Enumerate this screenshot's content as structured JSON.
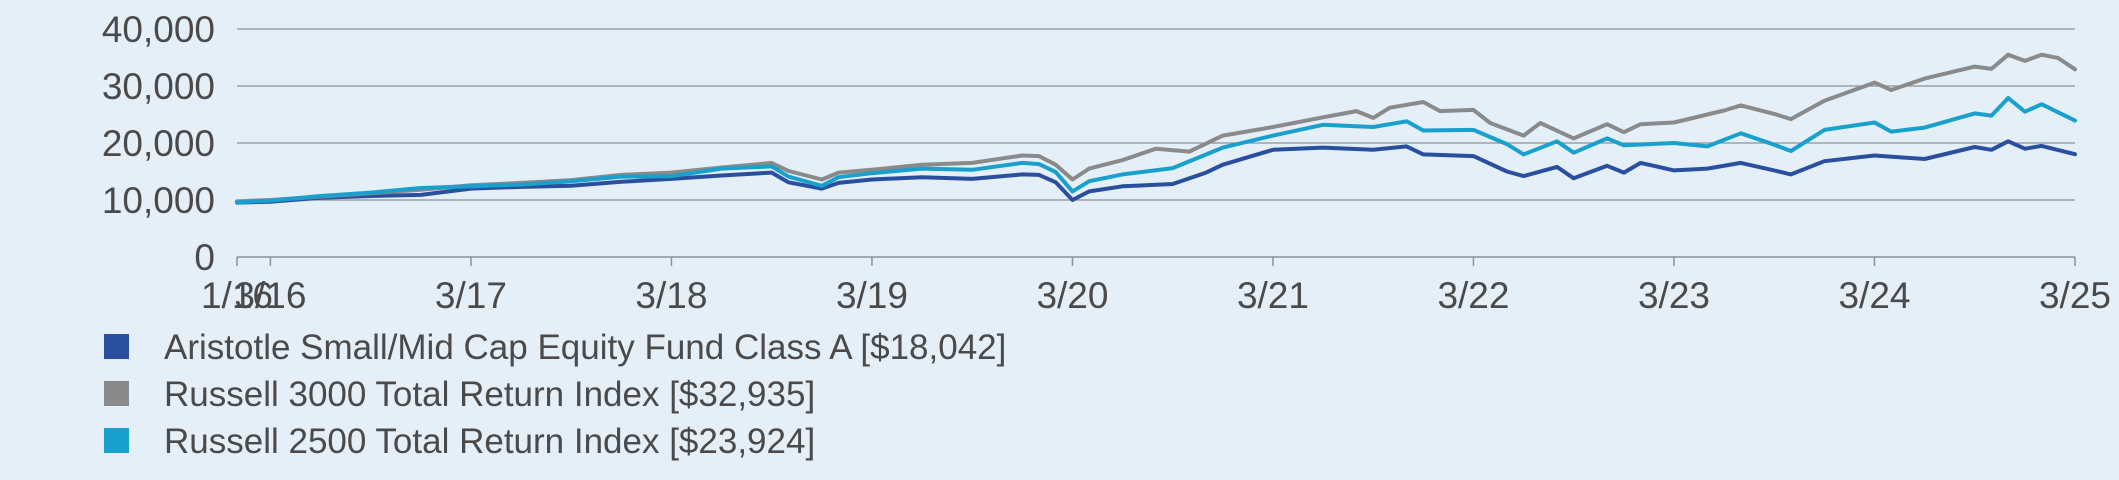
{
  "colors": {
    "background": "#e4eff8",
    "grid": "#8c9296",
    "axis_text": "#4a4a4a"
  },
  "chart_data": {
    "type": "line",
    "title": "",
    "xlabel": "",
    "ylabel": "",
    "ylim": [
      0,
      40000
    ],
    "yticks": [
      0,
      10000,
      20000,
      30000,
      40000
    ],
    "ytick_labels": [
      "0",
      "10,000",
      "20,000",
      "30,000",
      "40,000"
    ],
    "xlim": [
      "2016-01",
      "2025-03"
    ],
    "xticks": [
      "2016-01",
      "2016-03",
      "2017-03",
      "2018-03",
      "2019-03",
      "2020-03",
      "2021-03",
      "2022-03",
      "2023-03",
      "2024-03",
      "2025-03"
    ],
    "xtick_labels": [
      "1/16",
      "3/16",
      "3/17",
      "3/18",
      "3/19",
      "3/20",
      "3/21",
      "3/22",
      "3/23",
      "3/24",
      "3/25"
    ],
    "grid": true,
    "legend_position": "bottom",
    "series": [
      {
        "name": "Aristotle Small/Mid Cap Equity Fund Class A [$18,042]",
        "color": "#2b4f9f",
        "points": [
          [
            "2016-01",
            9550
          ],
          [
            "2016-03",
            9700
          ],
          [
            "2016-06",
            10400
          ],
          [
            "2016-09",
            10700
          ],
          [
            "2016-12",
            10900
          ],
          [
            "2017-03",
            12000
          ],
          [
            "2017-06",
            12300
          ],
          [
            "2017-09",
            12500
          ],
          [
            "2017-12",
            13200
          ],
          [
            "2018-03",
            13700
          ],
          [
            "2018-06",
            14300
          ],
          [
            "2018-09",
            14800
          ],
          [
            "2018-10",
            13100
          ],
          [
            "2018-12",
            12000
          ],
          [
            "2019-01",
            13000
          ],
          [
            "2019-03",
            13600
          ],
          [
            "2019-06",
            14000
          ],
          [
            "2019-09",
            13700
          ],
          [
            "2019-12",
            14500
          ],
          [
            "2020-01",
            14400
          ],
          [
            "2020-02",
            13100
          ],
          [
            "2020-03",
            10000
          ],
          [
            "2020-04",
            11500
          ],
          [
            "2020-06",
            12400
          ],
          [
            "2020-09",
            12800
          ],
          [
            "2020-11",
            14800
          ],
          [
            "2020-12",
            16200
          ],
          [
            "2021-03",
            18800
          ],
          [
            "2021-06",
            19200
          ],
          [
            "2021-09",
            18800
          ],
          [
            "2021-11",
            19400
          ],
          [
            "2021-12",
            18000
          ],
          [
            "2022-03",
            17700
          ],
          [
            "2022-05",
            15000
          ],
          [
            "2022-06",
            14200
          ],
          [
            "2022-08",
            15800
          ],
          [
            "2022-09",
            13800
          ],
          [
            "2022-11",
            16000
          ],
          [
            "2022-12",
            14800
          ],
          [
            "2023-01",
            16500
          ],
          [
            "2023-03",
            15200
          ],
          [
            "2023-05",
            15500
          ],
          [
            "2023-07",
            16500
          ],
          [
            "2023-09",
            15200
          ],
          [
            "2023-10",
            14500
          ],
          [
            "2023-12",
            16800
          ],
          [
            "2024-03",
            17800
          ],
          [
            "2024-06",
            17200
          ],
          [
            "2024-09",
            19300
          ],
          [
            "2024-10",
            18800
          ],
          [
            "2024-11",
            20300
          ],
          [
            "2024-12",
            19000
          ],
          [
            "2025-01",
            19500
          ],
          [
            "2025-03",
            18042
          ]
        ]
      },
      {
        "name": "Russell 3000 Total Return Index [$32,935]",
        "color": "#8a8a8a",
        "points": [
          [
            "2016-01",
            9750
          ],
          [
            "2016-03",
            10000
          ],
          [
            "2016-06",
            10600
          ],
          [
            "2016-09",
            11200
          ],
          [
            "2016-12",
            11800
          ],
          [
            "2017-03",
            12600
          ],
          [
            "2017-06",
            13000
          ],
          [
            "2017-09",
            13500
          ],
          [
            "2017-12",
            14400
          ],
          [
            "2018-03",
            14800
          ],
          [
            "2018-06",
            15700
          ],
          [
            "2018-09",
            16500
          ],
          [
            "2018-10",
            15100
          ],
          [
            "2018-12",
            13600
          ],
          [
            "2019-01",
            14800
          ],
          [
            "2019-03",
            15300
          ],
          [
            "2019-06",
            16200
          ],
          [
            "2019-09",
            16500
          ],
          [
            "2019-12",
            17800
          ],
          [
            "2020-01",
            17700
          ],
          [
            "2020-02",
            16200
          ],
          [
            "2020-03",
            13600
          ],
          [
            "2020-04",
            15500
          ],
          [
            "2020-06",
            17000
          ],
          [
            "2020-08",
            19000
          ],
          [
            "2020-10",
            18500
          ],
          [
            "2020-12",
            21300
          ],
          [
            "2021-03",
            22800
          ],
          [
            "2021-06",
            24500
          ],
          [
            "2021-08",
            25600
          ],
          [
            "2021-09",
            24400
          ],
          [
            "2021-10",
            26200
          ],
          [
            "2021-12",
            27200
          ],
          [
            "2022-01",
            25600
          ],
          [
            "2022-03",
            25800
          ],
          [
            "2022-04",
            23500
          ],
          [
            "2022-06",
            21300
          ],
          [
            "2022-07",
            23500
          ],
          [
            "2022-09",
            20800
          ],
          [
            "2022-11",
            23300
          ],
          [
            "2022-12",
            21900
          ],
          [
            "2023-01",
            23300
          ],
          [
            "2023-03",
            23600
          ],
          [
            "2023-06",
            25700
          ],
          [
            "2023-07",
            26600
          ],
          [
            "2023-09",
            25100
          ],
          [
            "2023-10",
            24200
          ],
          [
            "2023-12",
            27400
          ],
          [
            "2024-03",
            30600
          ],
          [
            "2024-04",
            29300
          ],
          [
            "2024-06",
            31300
          ],
          [
            "2024-09",
            33400
          ],
          [
            "2024-10",
            33000
          ],
          [
            "2024-11",
            35500
          ],
          [
            "2024-12",
            34400
          ],
          [
            "2025-01",
            35500
          ],
          [
            "2025-02",
            34900
          ],
          [
            "2025-03",
            32935
          ]
        ]
      },
      {
        "name": "Russell 2500 Total Return Index [$23,924]",
        "color": "#1aa0cc",
        "points": [
          [
            "2016-01",
            9600
          ],
          [
            "2016-03",
            9900
          ],
          [
            "2016-06",
            10700
          ],
          [
            "2016-09",
            11300
          ],
          [
            "2016-12",
            12100
          ],
          [
            "2017-03",
            12400
          ],
          [
            "2017-06",
            12700
          ],
          [
            "2017-09",
            13300
          ],
          [
            "2017-12",
            14100
          ],
          [
            "2018-03",
            14200
          ],
          [
            "2018-06",
            15500
          ],
          [
            "2018-09",
            15900
          ],
          [
            "2018-10",
            14100
          ],
          [
            "2018-12",
            12500
          ],
          [
            "2019-01",
            14000
          ],
          [
            "2019-03",
            14700
          ],
          [
            "2019-06",
            15500
          ],
          [
            "2019-09",
            15300
          ],
          [
            "2019-12",
            16500
          ],
          [
            "2020-01",
            16300
          ],
          [
            "2020-02",
            14900
          ],
          [
            "2020-03",
            11500
          ],
          [
            "2020-04",
            13300
          ],
          [
            "2020-06",
            14500
          ],
          [
            "2020-09",
            15600
          ],
          [
            "2020-12",
            19200
          ],
          [
            "2021-03",
            21300
          ],
          [
            "2021-06",
            23200
          ],
          [
            "2021-09",
            22800
          ],
          [
            "2021-11",
            23800
          ],
          [
            "2021-12",
            22200
          ],
          [
            "2022-03",
            22300
          ],
          [
            "2022-05",
            19800
          ],
          [
            "2022-06",
            18000
          ],
          [
            "2022-08",
            20300
          ],
          [
            "2022-09",
            18300
          ],
          [
            "2022-11",
            20800
          ],
          [
            "2022-12",
            19600
          ],
          [
            "2023-03",
            20000
          ],
          [
            "2023-05",
            19400
          ],
          [
            "2023-07",
            21700
          ],
          [
            "2023-09",
            19700
          ],
          [
            "2023-10",
            18600
          ],
          [
            "2023-12",
            22300
          ],
          [
            "2024-03",
            23600
          ],
          [
            "2024-04",
            22000
          ],
          [
            "2024-06",
            22700
          ],
          [
            "2024-09",
            25200
          ],
          [
            "2024-10",
            24800
          ],
          [
            "2024-11",
            27900
          ],
          [
            "2024-12",
            25500
          ],
          [
            "2025-01",
            26800
          ],
          [
            "2025-03",
            23924
          ]
        ]
      }
    ]
  }
}
